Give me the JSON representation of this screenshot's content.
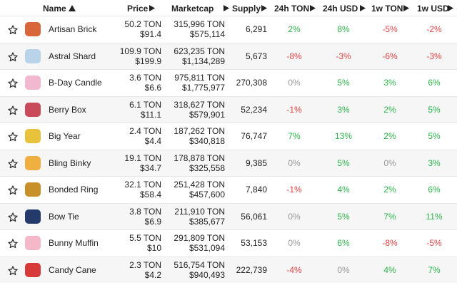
{
  "table": {
    "headers": [
      "Name",
      "Price",
      "Marketcap",
      "Supply",
      "24h TON",
      "24h USD",
      "1w TON",
      "1w USD"
    ],
    "rows": [
      [
        "Artisan Brick",
        "50.2 TON",
        "$91.4",
        "315,996 TON",
        "$575,114",
        "6,291",
        "2%",
        "8%",
        "-5%",
        "-2%"
      ],
      [
        "Astral Shard",
        "109.9 TON",
        "$199.9",
        "623,235 TON",
        "$1,134,289",
        "5,673",
        "-8%",
        "-3%",
        "-6%",
        "-3%"
      ],
      [
        "B-Day Candle",
        "3.6 TON",
        "$6.6",
        "975,811 TON",
        "$1,775,977",
        "270,308",
        "0%",
        "5%",
        "3%",
        "6%"
      ],
      [
        "Berry Box",
        "6.1 TON",
        "$11.1",
        "318,627 TON",
        "$579,901",
        "52,234",
        "-1%",
        "3%",
        "2%",
        "5%"
      ],
      [
        "Big Year",
        "2.4 TON",
        "$4.4",
        "187,262 TON",
        "$340,818",
        "76,747",
        "7%",
        "13%",
        "2%",
        "5%"
      ],
      [
        "Bling Binky",
        "19.1 TON",
        "$34.7",
        "178,878 TON",
        "$325,558",
        "9,385",
        "0%",
        "5%",
        "0%",
        "3%"
      ],
      [
        "Bonded Ring",
        "32.1 TON",
        "$58.4",
        "251,428 TON",
        "$457,600",
        "7,840",
        "-1%",
        "4%",
        "2%",
        "6%"
      ],
      [
        "Bow Tie",
        "3.8 TON",
        "$6.9",
        "211,910 TON",
        "$385,677",
        "56,061",
        "0%",
        "5%",
        "7%",
        "11%"
      ],
      [
        "Bunny Muffin",
        "5.5 TON",
        "$10",
        "291,809 TON",
        "$531,094",
        "53,153",
        "0%",
        "6%",
        "-8%",
        "-5%"
      ],
      [
        "Candy Cane",
        "2.3 TON",
        "$4.2",
        "516,754 TON",
        "$940,493",
        "222,739",
        "-4%",
        "0%",
        "4%",
        "7%"
      ]
    ]
  }
}
